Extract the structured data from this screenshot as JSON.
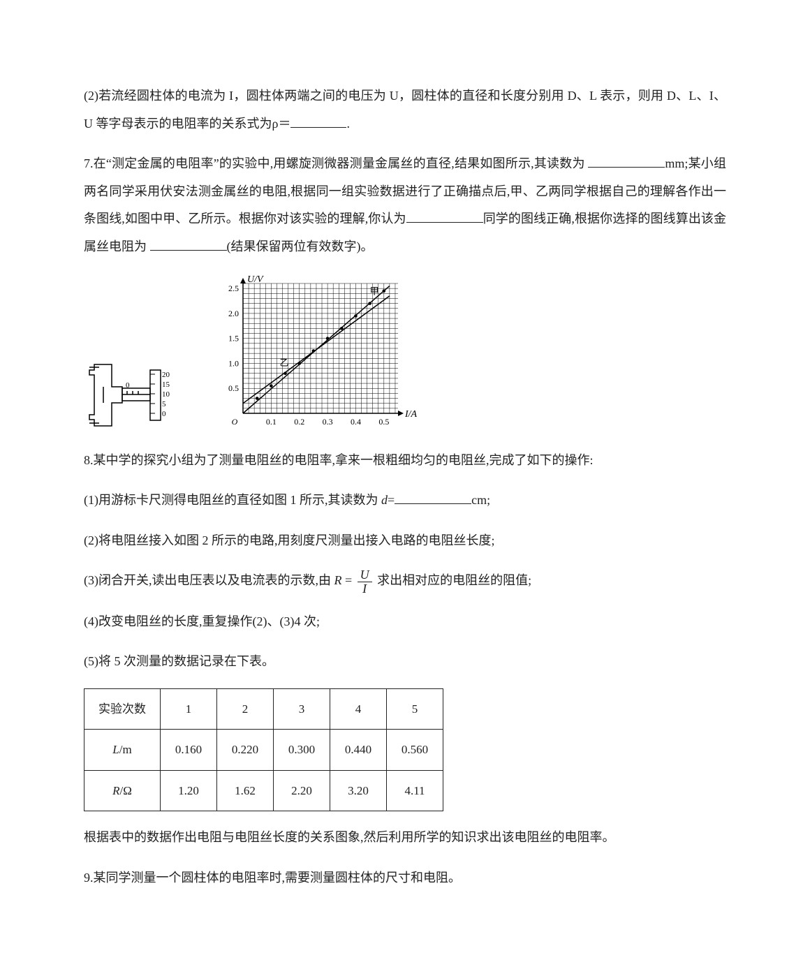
{
  "q6": {
    "p2": "(2)若流经圆柱体的电流为 I，圆柱体两端之间的电压为 U，圆柱体的直径和长度分别用 D、L 表示，则用 D、L、I、U 等字母表示的电阻率的关系式为ρ＝",
    "p2_tail": "."
  },
  "q7": {
    "lead": "7.在“测定金属的电阻率”的实验中,用螺旋测微器测量金属丝的直径,结果如图所示,其读数为",
    "unit": "mm;某小组两名同学采用伏安法测金属丝的电阻,根据同一组实验数据进行了正确描点后,甲、乙两同学根据自己的理解各作出一条图线,如图中甲、乙所示。根据你对该实验的理解,你认为",
    "blank2_after": "同学的图线正确,根据你选择的图线算出该金属丝电阻为",
    "tail": "(结果保留两位有效数字)。",
    "micrometer": {
      "main_scale_mark": "0",
      "thimble_ticks": [
        "20",
        "15",
        "10",
        "5",
        "0"
      ],
      "stroke": "#000000",
      "bg": "#ffffff"
    },
    "chart": {
      "type": "line",
      "xlabel": "I/A",
      "ylabel": "U/V",
      "xlim": [
        0,
        0.55
      ],
      "ylim": [
        0,
        2.6
      ],
      "xticks": [
        0.1,
        0.2,
        0.3,
        0.4,
        0.5
      ],
      "yticks": [
        0.5,
        1.0,
        1.5,
        2.0,
        2.5
      ],
      "minor_x_step": 0.02,
      "minor_y_step": 0.1,
      "grid_color": "#000000",
      "line_color": "#000000",
      "bg": "#ffffff",
      "label_fontsize": 14,
      "tick_fontsize": 12,
      "lines": {
        "jia": {
          "label": "甲",
          "x1": 0.0,
          "y1": 0.0,
          "x2": 0.52,
          "y2": 2.55
        },
        "yi": {
          "label": "乙",
          "x1": 0.0,
          "y1": 0.2,
          "x2": 0.52,
          "y2": 2.35
        }
      },
      "points": [
        {
          "x": 0.05,
          "y": 0.3
        },
        {
          "x": 0.1,
          "y": 0.55
        },
        {
          "x": 0.15,
          "y": 0.8
        },
        {
          "x": 0.2,
          "y": 1.0
        },
        {
          "x": 0.25,
          "y": 1.25
        },
        {
          "x": 0.3,
          "y": 1.5
        },
        {
          "x": 0.35,
          "y": 1.7
        },
        {
          "x": 0.4,
          "y": 1.95
        },
        {
          "x": 0.45,
          "y": 2.2
        },
        {
          "x": 0.5,
          "y": 2.45
        }
      ]
    }
  },
  "q8": {
    "lead": "8.某中学的探究小组为了测量电阻丝的电阻率,拿来一根粗细均匀的电阻丝,完成了如下的操作:",
    "p1_a": "(1)用游标卡尺测得电阻丝的直径如图 1 所示,其读数为 ",
    "p1_b": "=",
    "p1_unit": "cm;",
    "p2": "(2)将电阻丝接入如图 2 所示的电路,用刻度尺测量出接入电路的电阻丝长度;",
    "p3_a": "(3)闭合开关,读出电压表以及电流表的示数,由 ",
    "p3_b": " 求出相对应的电阻丝的阻值;",
    "p4": "(4)改变电阻丝的长度,重复操作(2)、(3)4 次;",
    "p5": "(5)将 5 次测量的数据记录在下表。",
    "formula": {
      "lhs": "R",
      "num": "U",
      "den": "I"
    },
    "table": {
      "headers": [
        "实验次数",
        "1",
        "2",
        "3",
        "4",
        "5"
      ],
      "rows": [
        {
          "label": "L/m",
          "cells": [
            "0.160",
            "0.220",
            "0.300",
            "0.440",
            "0.560"
          ]
        },
        {
          "label": "R/Ω",
          "cells": [
            "1.20",
            "1.62",
            "2.20",
            "3.20",
            "4.11"
          ]
        }
      ],
      "border_color": "#222222"
    },
    "tail": "根据表中的数据作出电阻与电阻丝长度的关系图象,然后利用所学的知识求出该电阻丝的电阻率。"
  },
  "q9": {
    "text": "9.某同学测量一个圆柱体的电阻率时,需要测量圆柱体的尺寸和电阻。"
  }
}
